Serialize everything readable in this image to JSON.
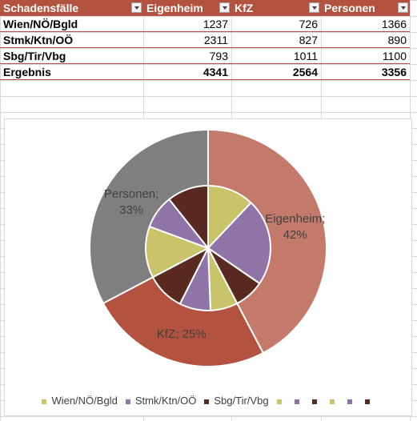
{
  "table": {
    "headers": [
      "Schadensfälle",
      "Eigenheim",
      "KfZ",
      "Personen"
    ],
    "rows": [
      {
        "label": "Wien/NÖ/Bgld",
        "values": [
          "1237",
          "726",
          "1366"
        ]
      },
      {
        "label": "Stmk/Ktn/OÖ",
        "values": [
          "2311",
          "827",
          "890"
        ]
      },
      {
        "label": "Sbg/Tir/Vbg",
        "values": [
          "793",
          "1011",
          "1100"
        ]
      }
    ],
    "total": {
      "label": "Ergebnis",
      "values": [
        "4341",
        "2564",
        "3356"
      ]
    }
  },
  "chart_data": {
    "type": "pie",
    "outer": [
      {
        "name": "Eigenheim",
        "value": 4341,
        "label": "Eigenheim;\n42%",
        "color": "#c47a6b"
      },
      {
        "name": "KfZ",
        "value": 2564,
        "label": "KfZ; 25%",
        "color": "#b3533f"
      },
      {
        "name": "Personen",
        "value": 3356,
        "label": "Personen;\n33%",
        "color": "#7f7f7f"
      }
    ],
    "inner_values": [
      1237,
      2311,
      793,
      726,
      827,
      1011,
      1366,
      890,
      1100
    ],
    "inner_colors": [
      "#c9c46a",
      "#8f74a8",
      "#5a2a22",
      "#c9c46a",
      "#8f74a8",
      "#5a2a22",
      "#c9c46a",
      "#8f74a8",
      "#5a2a22"
    ],
    "legend": [
      {
        "label": "Wien/NÖ/Bgld",
        "color": "#c9c46a"
      },
      {
        "label": "Stmk/Ktn/OÖ",
        "color": "#8f74a8"
      },
      {
        "label": "Sbg/Tir/Vbg",
        "color": "#5a2a22"
      },
      {
        "label": "",
        "color": "#c9c46a"
      },
      {
        "label": "",
        "color": "#8f74a8"
      },
      {
        "label": "",
        "color": "#5a2a22"
      },
      {
        "label": "",
        "color": "#c9c46a"
      },
      {
        "label": "",
        "color": "#8f74a8"
      },
      {
        "label": "",
        "color": "#5a2a22"
      }
    ]
  }
}
